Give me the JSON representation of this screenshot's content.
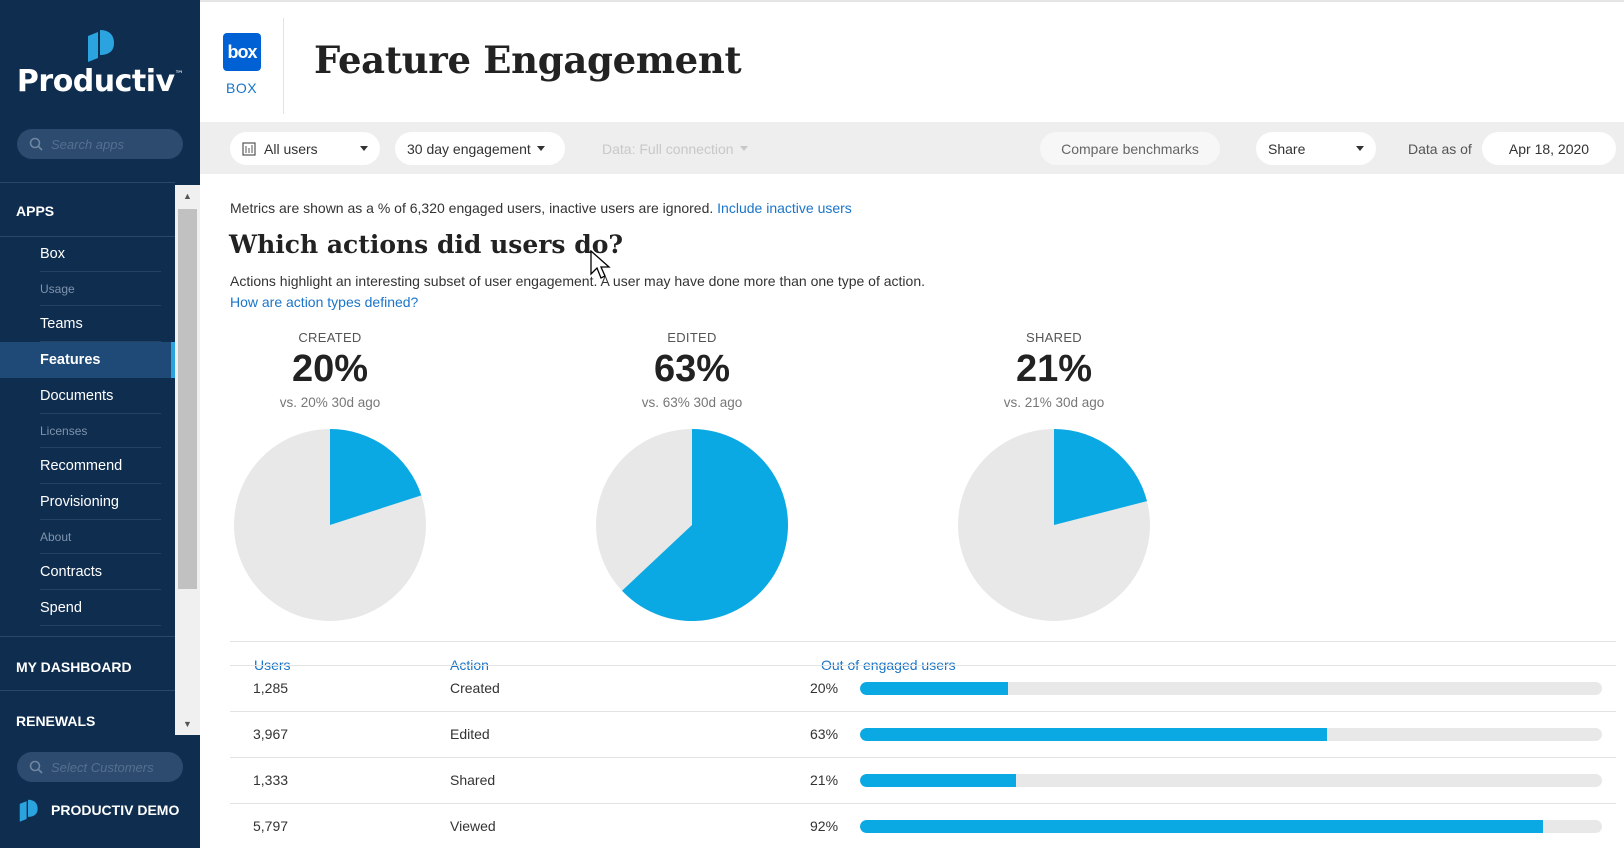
{
  "brand": {
    "name": "Productiv",
    "tm": "™"
  },
  "sidebar": {
    "search_placeholder": "Search apps",
    "apps_label": "APPS",
    "items": [
      {
        "label": "Box",
        "type": "item"
      },
      {
        "label": "Usage",
        "type": "sub"
      },
      {
        "label": "Teams",
        "type": "item"
      },
      {
        "label": "Features",
        "type": "item",
        "active": true
      },
      {
        "label": "Documents",
        "type": "item"
      },
      {
        "label": "Licenses",
        "type": "sub"
      },
      {
        "label": "Recommend",
        "type": "item"
      },
      {
        "label": "Provisioning",
        "type": "item"
      },
      {
        "label": "About",
        "type": "sub"
      },
      {
        "label": "Contracts",
        "type": "item"
      },
      {
        "label": "Spend",
        "type": "item"
      }
    ],
    "dashboard_label": "MY DASHBOARD",
    "renewals_label": "RENEWALS",
    "customer_placeholder": "Select Customers",
    "demo_label": "PRODUCTIV DEMO"
  },
  "header": {
    "app_badge": "box",
    "app_name": "BOX",
    "title": "Feature Engagement"
  },
  "filters": {
    "users": "All users",
    "engagement": "30 day engagement",
    "data_connection": "Data: Full connection",
    "compare": "Compare benchmarks",
    "share": "Share",
    "data_as_of_label": "Data as of",
    "data_as_of_date": "Apr 18, 2020"
  },
  "content": {
    "metrics_note": "Metrics are shown as a % of 6,320 engaged users, inactive users are ignored.",
    "include_inactive_link": "Include inactive users",
    "section_title": "Which actions did users do?",
    "section_desc": "Actions highlight an interesting subset of user engagement. A user may have done more than one type of action.",
    "section_link": "How are action types defined?"
  },
  "stats": [
    {
      "label": "CREATED",
      "pct": "20%",
      "value": 0.2,
      "compare": "vs. 20% 30d ago"
    },
    {
      "label": "EDITED",
      "pct": "63%",
      "value": 0.63,
      "compare": "vs. 63% 30d ago"
    },
    {
      "label": "SHARED",
      "pct": "21%",
      "value": 0.21,
      "compare": "vs. 21% 30d ago"
    }
  ],
  "table": {
    "headers": {
      "users": "Users",
      "action": "Action",
      "out_of": "Out of engaged users"
    },
    "rows": [
      {
        "users": "1,285",
        "action": "Created",
        "pct_label": "20%",
        "value": 0.2
      },
      {
        "users": "3,967",
        "action": "Edited",
        "pct_label": "63%",
        "value": 0.63
      },
      {
        "users": "1,333",
        "action": "Shared",
        "pct_label": "21%",
        "value": 0.21
      },
      {
        "users": "5,797",
        "action": "Viewed",
        "pct_label": "92%",
        "value": 0.92
      }
    ]
  },
  "colors": {
    "accent": "#0aa9e3",
    "pie_bg": "#e8e8e8",
    "sidebar": "#0f2d4f",
    "link": "#1a75c9"
  }
}
